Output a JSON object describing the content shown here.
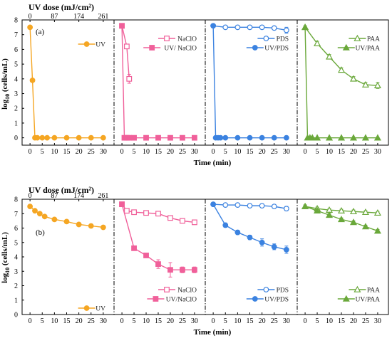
{
  "chart_data": [
    {
      "type": "line",
      "title": "UV dose (mJ/cm²)",
      "panel_label": "(a)",
      "ylabel": "log10 (cells/mL)",
      "xlabel": "Time (min)",
      "ylim": [
        -0.5,
        8
      ],
      "yticks": [
        0,
        1,
        2,
        3,
        4,
        5,
        6,
        7,
        8
      ],
      "top_axis_ticks": [
        "0",
        "87",
        "174",
        "261"
      ],
      "top_axis_positions": [
        0,
        10,
        20,
        30
      ],
      "subplots": [
        {
          "xlim": [
            -1.5,
            31.5
          ],
          "xticks": [
            0,
            5,
            10,
            15,
            20,
            25,
            30
          ],
          "series": [
            {
              "name": "UV",
              "color": "#f5a623",
              "marker": "circle",
              "filled": true,
              "x": [
                0,
                1,
                2,
                3,
                5,
                7,
                10,
                15,
                20,
                25,
                30
              ],
              "y": [
                7.5,
                3.9,
                0,
                0,
                0,
                0,
                0,
                0,
                0,
                0,
                0
              ]
            }
          ],
          "legend_pos": "top-right"
        },
        {
          "xlim": [
            -1.5,
            31.5
          ],
          "xticks": [
            0,
            5,
            10,
            15,
            20,
            25,
            30
          ],
          "series": [
            {
              "name": "NaClO",
              "color": "#f0609a",
              "marker": "square",
              "filled": false,
              "x": [
                0,
                2,
                3
              ],
              "y": [
                7.6,
                6.2,
                4.0
              ],
              "err": [
                0.15,
                0.1,
                0.3
              ]
            },
            {
              "name": "UV/ NaClO",
              "color": "#f0609a",
              "marker": "square",
              "filled": true,
              "x": [
                0,
                1,
                2,
                3,
                5,
                10,
                15,
                20,
                25,
                30
              ],
              "y": [
                7.6,
                0,
                0,
                0,
                0,
                0,
                0,
                0,
                0,
                0
              ]
            }
          ],
          "legend_pos": "top-right"
        },
        {
          "xlim": [
            -1.5,
            31.5
          ],
          "xticks": [
            0,
            5,
            10,
            15,
            20,
            25,
            30
          ],
          "series": [
            {
              "name": "PDS",
              "color": "#3b82e0",
              "marker": "circle",
              "filled": false,
              "x": [
                0,
                5,
                10,
                15,
                20,
                25,
                30
              ],
              "y": [
                7.6,
                7.5,
                7.5,
                7.5,
                7.5,
                7.45,
                7.3
              ],
              "err": [
                0.1,
                0.1,
                0.1,
                0.1,
                0.1,
                0.1,
                0.2
              ]
            },
            {
              "name": "UV/PDS",
              "color": "#3b82e0",
              "marker": "circle",
              "filled": true,
              "x": [
                0,
                1,
                2,
                3,
                5,
                10,
                15,
                20,
                25,
                30
              ],
              "y": [
                7.6,
                0,
                0,
                0,
                0,
                0,
                0,
                0,
                0,
                0
              ]
            }
          ],
          "legend_pos": "top-right"
        },
        {
          "xlim": [
            -1.5,
            31.5
          ],
          "xticks": [
            0,
            5,
            10,
            15,
            20,
            25,
            30
          ],
          "series": [
            {
              "name": "PAA",
              "color": "#6aa83a",
              "marker": "triangle",
              "filled": false,
              "x": [
                0,
                5,
                10,
                15,
                20,
                25,
                30
              ],
              "y": [
                7.5,
                6.4,
                5.5,
                4.6,
                4.0,
                3.6,
                3.55
              ],
              "err": [
                0.1,
                0.15,
                0.15,
                0.15,
                0.15,
                0.15,
                0.2
              ]
            },
            {
              "name": "UV/PAA",
              "color": "#6aa83a",
              "marker": "triangle",
              "filled": true,
              "x": [
                0,
                1,
                2,
                3,
                5,
                10,
                15,
                20,
                25,
                30
              ],
              "y": [
                7.5,
                0,
                0,
                0,
                0,
                0,
                0,
                0,
                0,
                0
              ]
            }
          ],
          "legend_pos": "top-right"
        }
      ]
    },
    {
      "type": "line",
      "title": "UV dose (mJ/cm²)",
      "panel_label": "(b)",
      "ylabel": "log10 (cells/mL)",
      "xlabel": "Time (min)",
      "ylim": [
        0,
        8
      ],
      "yticks": [
        0,
        1,
        2,
        3,
        4,
        5,
        6,
        7,
        8
      ],
      "top_axis_ticks": [
        "0",
        "87",
        "174",
        "261"
      ],
      "top_axis_positions": [
        0,
        10,
        20,
        30
      ],
      "subplots": [
        {
          "xlim": [
            -1.5,
            31.5
          ],
          "xticks": [
            0,
            5,
            10,
            15,
            20,
            25,
            30
          ],
          "series": [
            {
              "name": "UV",
              "color": "#f5a623",
              "marker": "circle",
              "filled": true,
              "x": [
                0,
                2,
                4,
                6,
                10,
                15,
                20,
                25,
                30
              ],
              "y": [
                7.5,
                7.2,
                7.0,
                6.8,
                6.6,
                6.45,
                6.25,
                6.15,
                6.05
              ]
            }
          ],
          "legend_pos": "bottom-right"
        },
        {
          "xlim": [
            -1.5,
            31.5
          ],
          "xticks": [
            0,
            5,
            10,
            15,
            20,
            25,
            30
          ],
          "series": [
            {
              "name": "NaClO",
              "color": "#f0609a",
              "marker": "square",
              "filled": false,
              "x": [
                0,
                2,
                5,
                10,
                15,
                20,
                25,
                30
              ],
              "y": [
                7.65,
                7.2,
                7.1,
                7.05,
                7.0,
                6.7,
                6.5,
                6.4
              ],
              "err": [
                0.15,
                0.1,
                0.1,
                0.1,
                0.1,
                0.1,
                0.1,
                0.15
              ]
            },
            {
              "name": "UV/NaClO",
              "color": "#f0609a",
              "marker": "square",
              "filled": true,
              "x": [
                0,
                5,
                10,
                15,
                20,
                25,
                30
              ],
              "y": [
                7.65,
                4.6,
                4.1,
                3.5,
                3.1,
                3.1,
                3.1
              ],
              "err": [
                0.1,
                0.1,
                0.1,
                0.3,
                0.5,
                0.2,
                0.2
              ]
            }
          ],
          "legend_pos": "bottom-right"
        },
        {
          "xlim": [
            -1.5,
            31.5
          ],
          "xticks": [
            0,
            5,
            10,
            15,
            20,
            25,
            30
          ],
          "series": [
            {
              "name": "PDS",
              "color": "#3b82e0",
              "marker": "circle",
              "filled": false,
              "x": [
                0,
                5,
                10,
                15,
                20,
                25,
                30
              ],
              "y": [
                7.65,
                7.6,
                7.6,
                7.55,
                7.55,
                7.5,
                7.35
              ],
              "err": [
                0.1,
                0.1,
                0.1,
                0.1,
                0.1,
                0.1,
                0.15
              ]
            },
            {
              "name": "UV/PDS",
              "color": "#3b82e0",
              "marker": "circle",
              "filled": true,
              "x": [
                0,
                5,
                10,
                15,
                20,
                25,
                30
              ],
              "y": [
                7.65,
                6.2,
                5.7,
                5.35,
                5.0,
                4.7,
                4.5
              ],
              "err": [
                0.1,
                0.15,
                0.15,
                0.15,
                0.25,
                0.2,
                0.25
              ]
            }
          ],
          "legend_pos": "bottom-right"
        },
        {
          "xlim": [
            -1.5,
            31.5
          ],
          "xticks": [
            0,
            5,
            10,
            15,
            20,
            25,
            30
          ],
          "series": [
            {
              "name": "PAA",
              "color": "#6aa83a",
              "marker": "triangle",
              "filled": false,
              "x": [
                0,
                5,
                10,
                15,
                20,
                25,
                30
              ],
              "y": [
                7.5,
                7.35,
                7.25,
                7.2,
                7.15,
                7.1,
                7.05
              ],
              "err": [
                0.1,
                0.1,
                0.1,
                0.1,
                0.1,
                0.1,
                0.1
              ]
            },
            {
              "name": "UV/PAA",
              "color": "#6aa83a",
              "marker": "triangle",
              "filled": true,
              "x": [
                0,
                5,
                10,
                15,
                20,
                25,
                30
              ],
              "y": [
                7.5,
                7.2,
                6.9,
                6.6,
                6.4,
                6.1,
                5.8
              ],
              "err": [
                0.1,
                0.1,
                0.1,
                0.1,
                0.1,
                0.1,
                0.1
              ]
            }
          ],
          "legend_pos": "bottom-right"
        }
      ]
    }
  ]
}
